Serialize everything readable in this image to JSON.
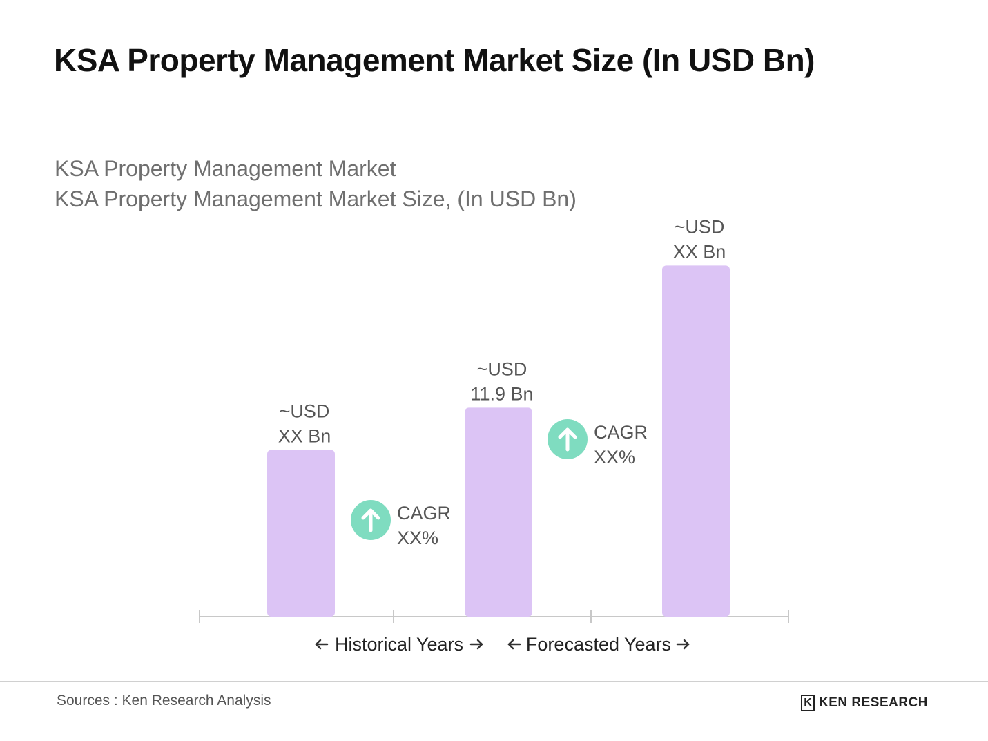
{
  "title": "KSA Property Management Market Size (In USD Bn)",
  "subtitle_line1": "KSA Property Management Market",
  "subtitle_line2": "KSA Property Management Market Size, (In USD Bn)",
  "source": "Sources : Ken Research Analysis",
  "logo": {
    "text": "KEN RESEARCH",
    "mark": "K"
  },
  "colors": {
    "bar": "#dcc4f5",
    "badge": "#7fdcc0",
    "axis": "#c8c8c8",
    "label": "#555555"
  },
  "chart_data": {
    "type": "bar",
    "categories": [
      "",
      "",
      ""
    ],
    "values": [
      9.5,
      11.9,
      20
    ],
    "value_labels": [
      {
        "line1": "~USD",
        "line2": "XX Bn"
      },
      {
        "line1": "~USD",
        "line2": "11.9 Bn"
      },
      {
        "line1": "~USD",
        "line2": "XX Bn"
      }
    ],
    "ylim": [
      0,
      21.9
    ],
    "growth_badges": [
      {
        "line1": "CAGR",
        "line2": "XX%",
        "between": [
          0,
          1
        ],
        "icon": "arrow-up-icon"
      },
      {
        "line1": "CAGR",
        "line2": "XX%",
        "between": [
          1,
          2
        ],
        "icon": "arrow-up-icon"
      }
    ],
    "periods": [
      {
        "label": "Historical Years"
      },
      {
        "label": "Forecasted Years"
      }
    ]
  }
}
